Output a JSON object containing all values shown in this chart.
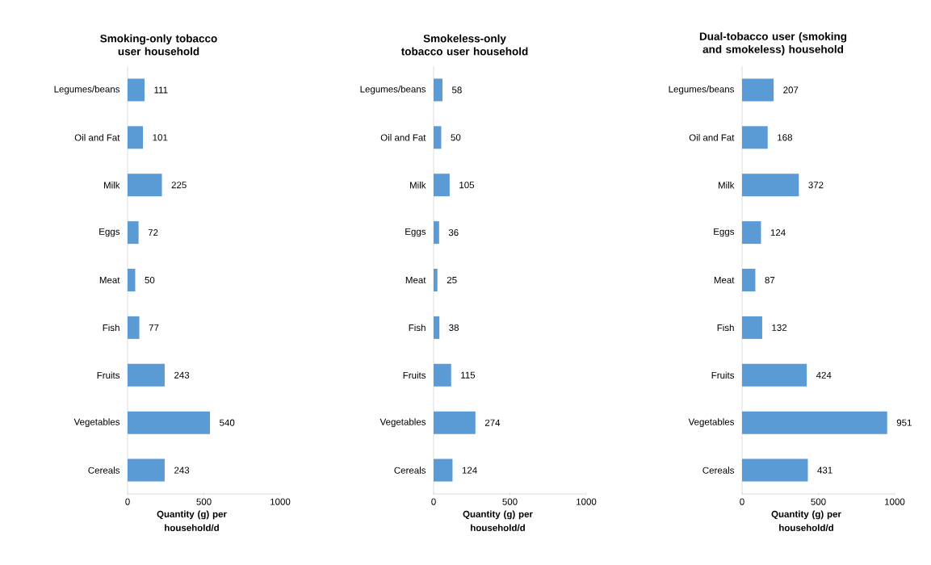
{
  "chart_data": [
    {
      "type": "bar",
      "orientation": "horizontal",
      "title": "Smoking-only tobacco user household",
      "xlabel": "Quantity (g) per household/d",
      "categories": [
        "Legumes/beans",
        "Oil and Fat",
        "Milk",
        "Eggs",
        "Meat",
        "Fish",
        "Fruits",
        "Vegetables",
        "Cereals"
      ],
      "values": [
        111,
        101,
        225,
        72,
        50,
        77,
        243,
        540,
        243
      ],
      "color": "#5b9bd5",
      "xlim": [
        0,
        1000
      ],
      "xticks": [
        0,
        500,
        1000
      ],
      "data_labels": true
    },
    {
      "type": "bar",
      "orientation": "horizontal",
      "title": "Smokeless-only tobacco user household",
      "xlabel": "Quantity (g) per household/d",
      "categories": [
        "Legumes/beans",
        "Oil and Fat",
        "Milk",
        "Eggs",
        "Meat",
        "Fish",
        "Fruits",
        "Vegetables",
        "Cereals"
      ],
      "values": [
        58,
        50,
        105,
        36,
        25,
        38,
        115,
        274,
        124
      ],
      "color": "#5b9bd5",
      "xlim": [
        0,
        1000
      ],
      "xticks": [
        0,
        500,
        1000
      ],
      "data_labels": true
    },
    {
      "type": "bar",
      "orientation": "horizontal",
      "title": "Dual-tobacco user (smoking and smokeless) household",
      "xlabel": "Quantity (g) per household/d",
      "categories": [
        "Legumes/beans",
        "Oil and Fat",
        "Milk",
        "Eggs",
        "Meat",
        "Fish",
        "Fruits",
        "Vegetables",
        "Cereals"
      ],
      "values": [
        207,
        168,
        372,
        124,
        87,
        132,
        424,
        951,
        431
      ],
      "color": "#5b9bd5",
      "xlim": [
        0,
        1000
      ],
      "xticks": [
        0,
        500,
        1000
      ],
      "data_labels": true
    }
  ]
}
